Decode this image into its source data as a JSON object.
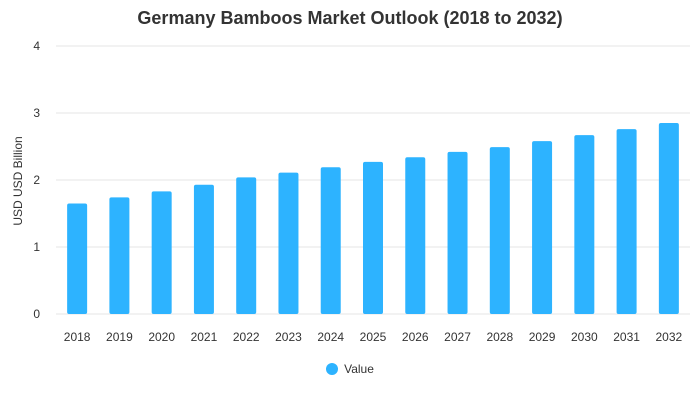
{
  "chart_data": {
    "type": "bar",
    "title": "Germany Bamboos Market Outlook (2018 to 2032)",
    "xlabel": "",
    "ylabel": "USD USD Billion",
    "categories": [
      "2018",
      "2019",
      "2020",
      "2021",
      "2022",
      "2023",
      "2024",
      "2025",
      "2026",
      "2027",
      "2028",
      "2029",
      "2030",
      "2031",
      "2032"
    ],
    "series": [
      {
        "name": "Value",
        "values": [
          1.65,
          1.74,
          1.83,
          1.93,
          2.04,
          2.11,
          2.19,
          2.27,
          2.34,
          2.42,
          2.49,
          2.58,
          2.67,
          2.76,
          2.85
        ]
      }
    ],
    "ylim": [
      0,
      4
    ],
    "yticks": [
      "0",
      "1",
      "2",
      "3",
      "4"
    ],
    "grid": true,
    "legend_position": "bottom",
    "bar_color": "#2db3ff"
  }
}
